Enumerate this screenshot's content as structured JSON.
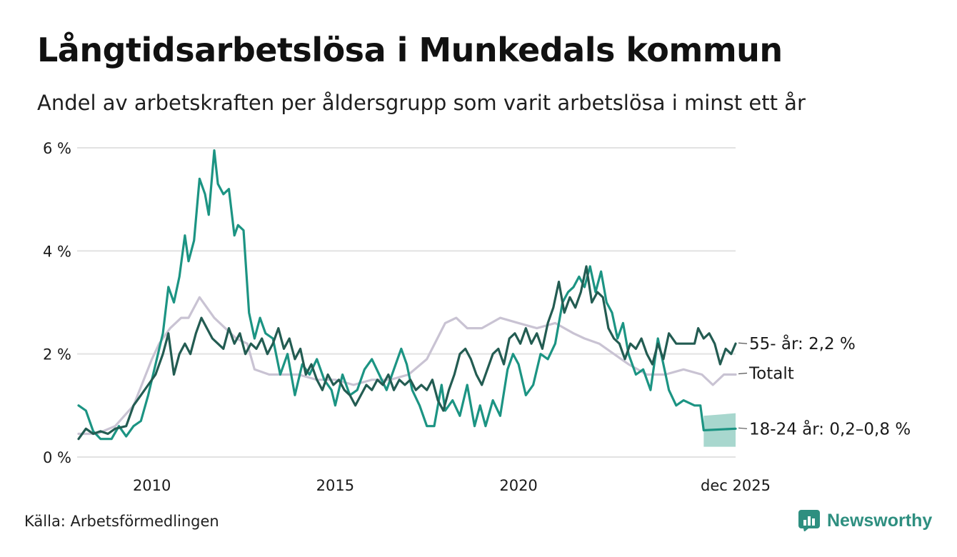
{
  "header": {
    "title": "Långtidsarbetslösa i Munkedals kommun",
    "subtitle": "Andel av arbetskraften per åldersgrupp som varit arbetslösa i minst ett år"
  },
  "footer": {
    "source": "Källa: Arbetsförmedlingen",
    "brand": "Newsworthy"
  },
  "colors": {
    "youth": "#1c9483",
    "youth_band": "#a8d7ce",
    "senior": "#235c52",
    "total": "#c9c3d3",
    "grid": "#e2e2e2",
    "text": "#1a1a1a",
    "brand": "#2e8f80"
  },
  "chart_data": {
    "type": "line",
    "title": "Långtidsarbetslösa i Munkedals kommun",
    "subtitle": "Andel av arbetskraften per åldersgrupp som varit arbetslösa i minst ett år",
    "xlabel": "",
    "ylabel": "",
    "xlim": [
      2008.0,
      2025.92
    ],
    "ylim": [
      0,
      6
    ],
    "y_ticks": [
      0,
      2,
      4,
      6
    ],
    "y_tick_labels": [
      "0 %",
      "2 %",
      "4 %",
      "6 %"
    ],
    "x_ticks": [
      2010,
      2015,
      2020,
      2025.92
    ],
    "x_tick_labels": [
      "2010",
      "2015",
      "2020",
      "dec 2025"
    ],
    "grid": true,
    "series": [
      {
        "name": "Totalt",
        "label": "Totalt",
        "color": "#c9c3d3",
        "points": [
          [
            2008.0,
            0.45
          ],
          [
            2008.5,
            0.45
          ],
          [
            2009.0,
            0.6
          ],
          [
            2009.5,
            1.0
          ],
          [
            2010.0,
            1.9
          ],
          [
            2010.2,
            2.2
          ],
          [
            2010.5,
            2.5
          ],
          [
            2010.8,
            2.7
          ],
          [
            2011.0,
            2.7
          ],
          [
            2011.3,
            3.1
          ],
          [
            2011.5,
            2.9
          ],
          [
            2011.7,
            2.7
          ],
          [
            2012.0,
            2.5
          ],
          [
            2012.3,
            2.3
          ],
          [
            2012.6,
            2.2
          ],
          [
            2012.8,
            1.7
          ],
          [
            2013.2,
            1.6
          ],
          [
            2013.6,
            1.6
          ],
          [
            2014.0,
            1.6
          ],
          [
            2014.5,
            1.5
          ],
          [
            2015.0,
            1.5
          ],
          [
            2015.5,
            1.4
          ],
          [
            2016.0,
            1.5
          ],
          [
            2016.5,
            1.5
          ],
          [
            2017.0,
            1.6
          ],
          [
            2017.5,
            1.9
          ],
          [
            2018.0,
            2.6
          ],
          [
            2018.3,
            2.7
          ],
          [
            2018.6,
            2.5
          ],
          [
            2019.0,
            2.5
          ],
          [
            2019.5,
            2.7
          ],
          [
            2020.0,
            2.6
          ],
          [
            2020.5,
            2.5
          ],
          [
            2021.0,
            2.6
          ],
          [
            2021.5,
            2.4
          ],
          [
            2021.8,
            2.3
          ],
          [
            2022.2,
            2.2
          ],
          [
            2022.6,
            2.0
          ],
          [
            2023.0,
            1.8
          ],
          [
            2023.5,
            1.6
          ],
          [
            2024.0,
            1.6
          ],
          [
            2024.5,
            1.7
          ],
          [
            2025.0,
            1.6
          ],
          [
            2025.3,
            1.4
          ],
          [
            2025.6,
            1.6
          ],
          [
            2025.92,
            1.6
          ]
        ]
      },
      {
        "name": "18-24 år",
        "label": "18-24 år: 0,2–0,8 %",
        "color": "#1c9483",
        "points": [
          [
            2008.0,
            1.0
          ],
          [
            2008.2,
            0.9
          ],
          [
            2008.4,
            0.5
          ],
          [
            2008.6,
            0.35
          ],
          [
            2008.9,
            0.35
          ],
          [
            2009.1,
            0.6
          ],
          [
            2009.3,
            0.4
          ],
          [
            2009.5,
            0.6
          ],
          [
            2009.7,
            0.7
          ],
          [
            2009.9,
            1.2
          ],
          [
            2010.1,
            1.8
          ],
          [
            2010.3,
            2.4
          ],
          [
            2010.45,
            3.3
          ],
          [
            2010.6,
            3.0
          ],
          [
            2010.75,
            3.5
          ],
          [
            2010.9,
            4.3
          ],
          [
            2011.0,
            3.8
          ],
          [
            2011.15,
            4.2
          ],
          [
            2011.3,
            5.4
          ],
          [
            2011.45,
            5.1
          ],
          [
            2011.55,
            4.7
          ],
          [
            2011.7,
            5.95
          ],
          [
            2011.8,
            5.3
          ],
          [
            2011.95,
            5.1
          ],
          [
            2012.1,
            5.2
          ],
          [
            2012.25,
            4.3
          ],
          [
            2012.35,
            4.5
          ],
          [
            2012.5,
            4.4
          ],
          [
            2012.65,
            2.8
          ],
          [
            2012.8,
            2.3
          ],
          [
            2012.95,
            2.7
          ],
          [
            2013.1,
            2.4
          ],
          [
            2013.3,
            2.3
          ],
          [
            2013.5,
            1.6
          ],
          [
            2013.7,
            2.0
          ],
          [
            2013.9,
            1.2
          ],
          [
            2014.1,
            1.8
          ],
          [
            2014.3,
            1.6
          ],
          [
            2014.5,
            1.9
          ],
          [
            2014.7,
            1.5
          ],
          [
            2014.9,
            1.3
          ],
          [
            2015.0,
            1.0
          ],
          [
            2015.2,
            1.6
          ],
          [
            2015.4,
            1.2
          ],
          [
            2015.6,
            1.3
          ],
          [
            2015.8,
            1.7
          ],
          [
            2016.0,
            1.9
          ],
          [
            2016.2,
            1.6
          ],
          [
            2016.4,
            1.3
          ],
          [
            2016.6,
            1.7
          ],
          [
            2016.8,
            2.1
          ],
          [
            2016.95,
            1.8
          ],
          [
            2017.1,
            1.3
          ],
          [
            2017.3,
            1.0
          ],
          [
            2017.5,
            0.6
          ],
          [
            2017.7,
            0.6
          ],
          [
            2017.9,
            1.4
          ],
          [
            2018.0,
            0.9
          ],
          [
            2018.2,
            1.1
          ],
          [
            2018.4,
            0.8
          ],
          [
            2018.6,
            1.4
          ],
          [
            2018.8,
            0.6
          ],
          [
            2018.95,
            1.0
          ],
          [
            2019.1,
            0.6
          ],
          [
            2019.3,
            1.1
          ],
          [
            2019.5,
            0.8
          ],
          [
            2019.7,
            1.7
          ],
          [
            2019.85,
            2.0
          ],
          [
            2020.0,
            1.8
          ],
          [
            2020.2,
            1.2
          ],
          [
            2020.4,
            1.4
          ],
          [
            2020.6,
            2.0
          ],
          [
            2020.8,
            1.9
          ],
          [
            2021.0,
            2.2
          ],
          [
            2021.2,
            3.0
          ],
          [
            2021.35,
            3.2
          ],
          [
            2021.5,
            3.3
          ],
          [
            2021.65,
            3.5
          ],
          [
            2021.8,
            3.3
          ],
          [
            2021.95,
            3.7
          ],
          [
            2022.1,
            3.2
          ],
          [
            2022.25,
            3.6
          ],
          [
            2022.4,
            3.0
          ],
          [
            2022.55,
            2.8
          ],
          [
            2022.7,
            2.3
          ],
          [
            2022.85,
            2.6
          ],
          [
            2023.0,
            2.0
          ],
          [
            2023.2,
            1.6
          ],
          [
            2023.4,
            1.7
          ],
          [
            2023.6,
            1.3
          ],
          [
            2023.8,
            2.3
          ],
          [
            2023.95,
            1.8
          ],
          [
            2024.1,
            1.3
          ],
          [
            2024.3,
            1.0
          ],
          [
            2024.5,
            1.1
          ],
          [
            2024.8,
            1.0
          ],
          [
            2024.96,
            1.0
          ],
          [
            2025.05,
            0.52
          ],
          [
            2025.92,
            0.55
          ]
        ],
        "uncertainty": {
          "x_from": 2025.05,
          "x_to": 2025.92,
          "low": 0.2,
          "high": 0.8
        }
      },
      {
        "name": "55- år",
        "label": "55- år: 2,2 %",
        "color": "#235c52",
        "points": [
          [
            2008.0,
            0.35
          ],
          [
            2008.2,
            0.55
          ],
          [
            2008.4,
            0.45
          ],
          [
            2008.6,
            0.5
          ],
          [
            2008.8,
            0.45
          ],
          [
            2009.0,
            0.55
          ],
          [
            2009.3,
            0.6
          ],
          [
            2009.5,
            1.0
          ],
          [
            2009.7,
            1.2
          ],
          [
            2009.9,
            1.4
          ],
          [
            2010.1,
            1.6
          ],
          [
            2010.3,
            2.0
          ],
          [
            2010.45,
            2.4
          ],
          [
            2010.6,
            1.6
          ],
          [
            2010.75,
            2.0
          ],
          [
            2010.9,
            2.2
          ],
          [
            2011.05,
            2.0
          ],
          [
            2011.2,
            2.4
          ],
          [
            2011.35,
            2.7
          ],
          [
            2011.5,
            2.5
          ],
          [
            2011.65,
            2.3
          ],
          [
            2011.8,
            2.2
          ],
          [
            2011.95,
            2.1
          ],
          [
            2012.1,
            2.5
          ],
          [
            2012.25,
            2.2
          ],
          [
            2012.4,
            2.4
          ],
          [
            2012.55,
            2.0
          ],
          [
            2012.7,
            2.2
          ],
          [
            2012.85,
            2.1
          ],
          [
            2013.0,
            2.3
          ],
          [
            2013.15,
            2.0
          ],
          [
            2013.3,
            2.2
          ],
          [
            2013.45,
            2.5
          ],
          [
            2013.6,
            2.1
          ],
          [
            2013.75,
            2.3
          ],
          [
            2013.9,
            1.9
          ],
          [
            2014.05,
            2.1
          ],
          [
            2014.2,
            1.6
          ],
          [
            2014.35,
            1.8
          ],
          [
            2014.5,
            1.5
          ],
          [
            2014.65,
            1.3
          ],
          [
            2014.8,
            1.6
          ],
          [
            2014.95,
            1.4
          ],
          [
            2015.1,
            1.5
          ],
          [
            2015.25,
            1.3
          ],
          [
            2015.4,
            1.2
          ],
          [
            2015.55,
            1.0
          ],
          [
            2015.7,
            1.2
          ],
          [
            2015.85,
            1.4
          ],
          [
            2016.0,
            1.3
          ],
          [
            2016.15,
            1.5
          ],
          [
            2016.3,
            1.4
          ],
          [
            2016.45,
            1.6
          ],
          [
            2016.6,
            1.3
          ],
          [
            2016.75,
            1.5
          ],
          [
            2016.9,
            1.4
          ],
          [
            2017.05,
            1.5
          ],
          [
            2017.2,
            1.3
          ],
          [
            2017.35,
            1.4
          ],
          [
            2017.5,
            1.3
          ],
          [
            2017.65,
            1.5
          ],
          [
            2017.8,
            1.1
          ],
          [
            2017.95,
            0.9
          ],
          [
            2018.1,
            1.3
          ],
          [
            2018.25,
            1.6
          ],
          [
            2018.4,
            2.0
          ],
          [
            2018.55,
            2.1
          ],
          [
            2018.7,
            1.9
          ],
          [
            2018.85,
            1.6
          ],
          [
            2019.0,
            1.4
          ],
          [
            2019.15,
            1.7
          ],
          [
            2019.3,
            2.0
          ],
          [
            2019.45,
            2.1
          ],
          [
            2019.6,
            1.8
          ],
          [
            2019.75,
            2.3
          ],
          [
            2019.9,
            2.4
          ],
          [
            2020.05,
            2.2
          ],
          [
            2020.2,
            2.5
          ],
          [
            2020.35,
            2.2
          ],
          [
            2020.5,
            2.4
          ],
          [
            2020.65,
            2.1
          ],
          [
            2020.8,
            2.6
          ],
          [
            2020.95,
            2.9
          ],
          [
            2021.1,
            3.4
          ],
          [
            2021.25,
            2.8
          ],
          [
            2021.4,
            3.1
          ],
          [
            2021.55,
            2.9
          ],
          [
            2021.7,
            3.2
          ],
          [
            2021.85,
            3.7
          ],
          [
            2022.0,
            3.0
          ],
          [
            2022.15,
            3.2
          ],
          [
            2022.3,
            3.1
          ],
          [
            2022.45,
            2.5
          ],
          [
            2022.6,
            2.3
          ],
          [
            2022.75,
            2.2
          ],
          [
            2022.9,
            1.9
          ],
          [
            2023.05,
            2.2
          ],
          [
            2023.2,
            2.1
          ],
          [
            2023.35,
            2.3
          ],
          [
            2023.5,
            2.0
          ],
          [
            2023.65,
            1.8
          ],
          [
            2023.8,
            2.2
          ],
          [
            2023.95,
            1.9
          ],
          [
            2024.1,
            2.4
          ],
          [
            2024.3,
            2.2
          ],
          [
            2024.5,
            2.2
          ],
          [
            2024.8,
            2.2
          ],
          [
            2024.9,
            2.5
          ],
          [
            2025.05,
            2.3
          ],
          [
            2025.2,
            2.4
          ],
          [
            2025.35,
            2.2
          ],
          [
            2025.5,
            1.8
          ],
          [
            2025.65,
            2.1
          ],
          [
            2025.8,
            2.0
          ],
          [
            2025.92,
            2.2
          ]
        ]
      }
    ]
  }
}
